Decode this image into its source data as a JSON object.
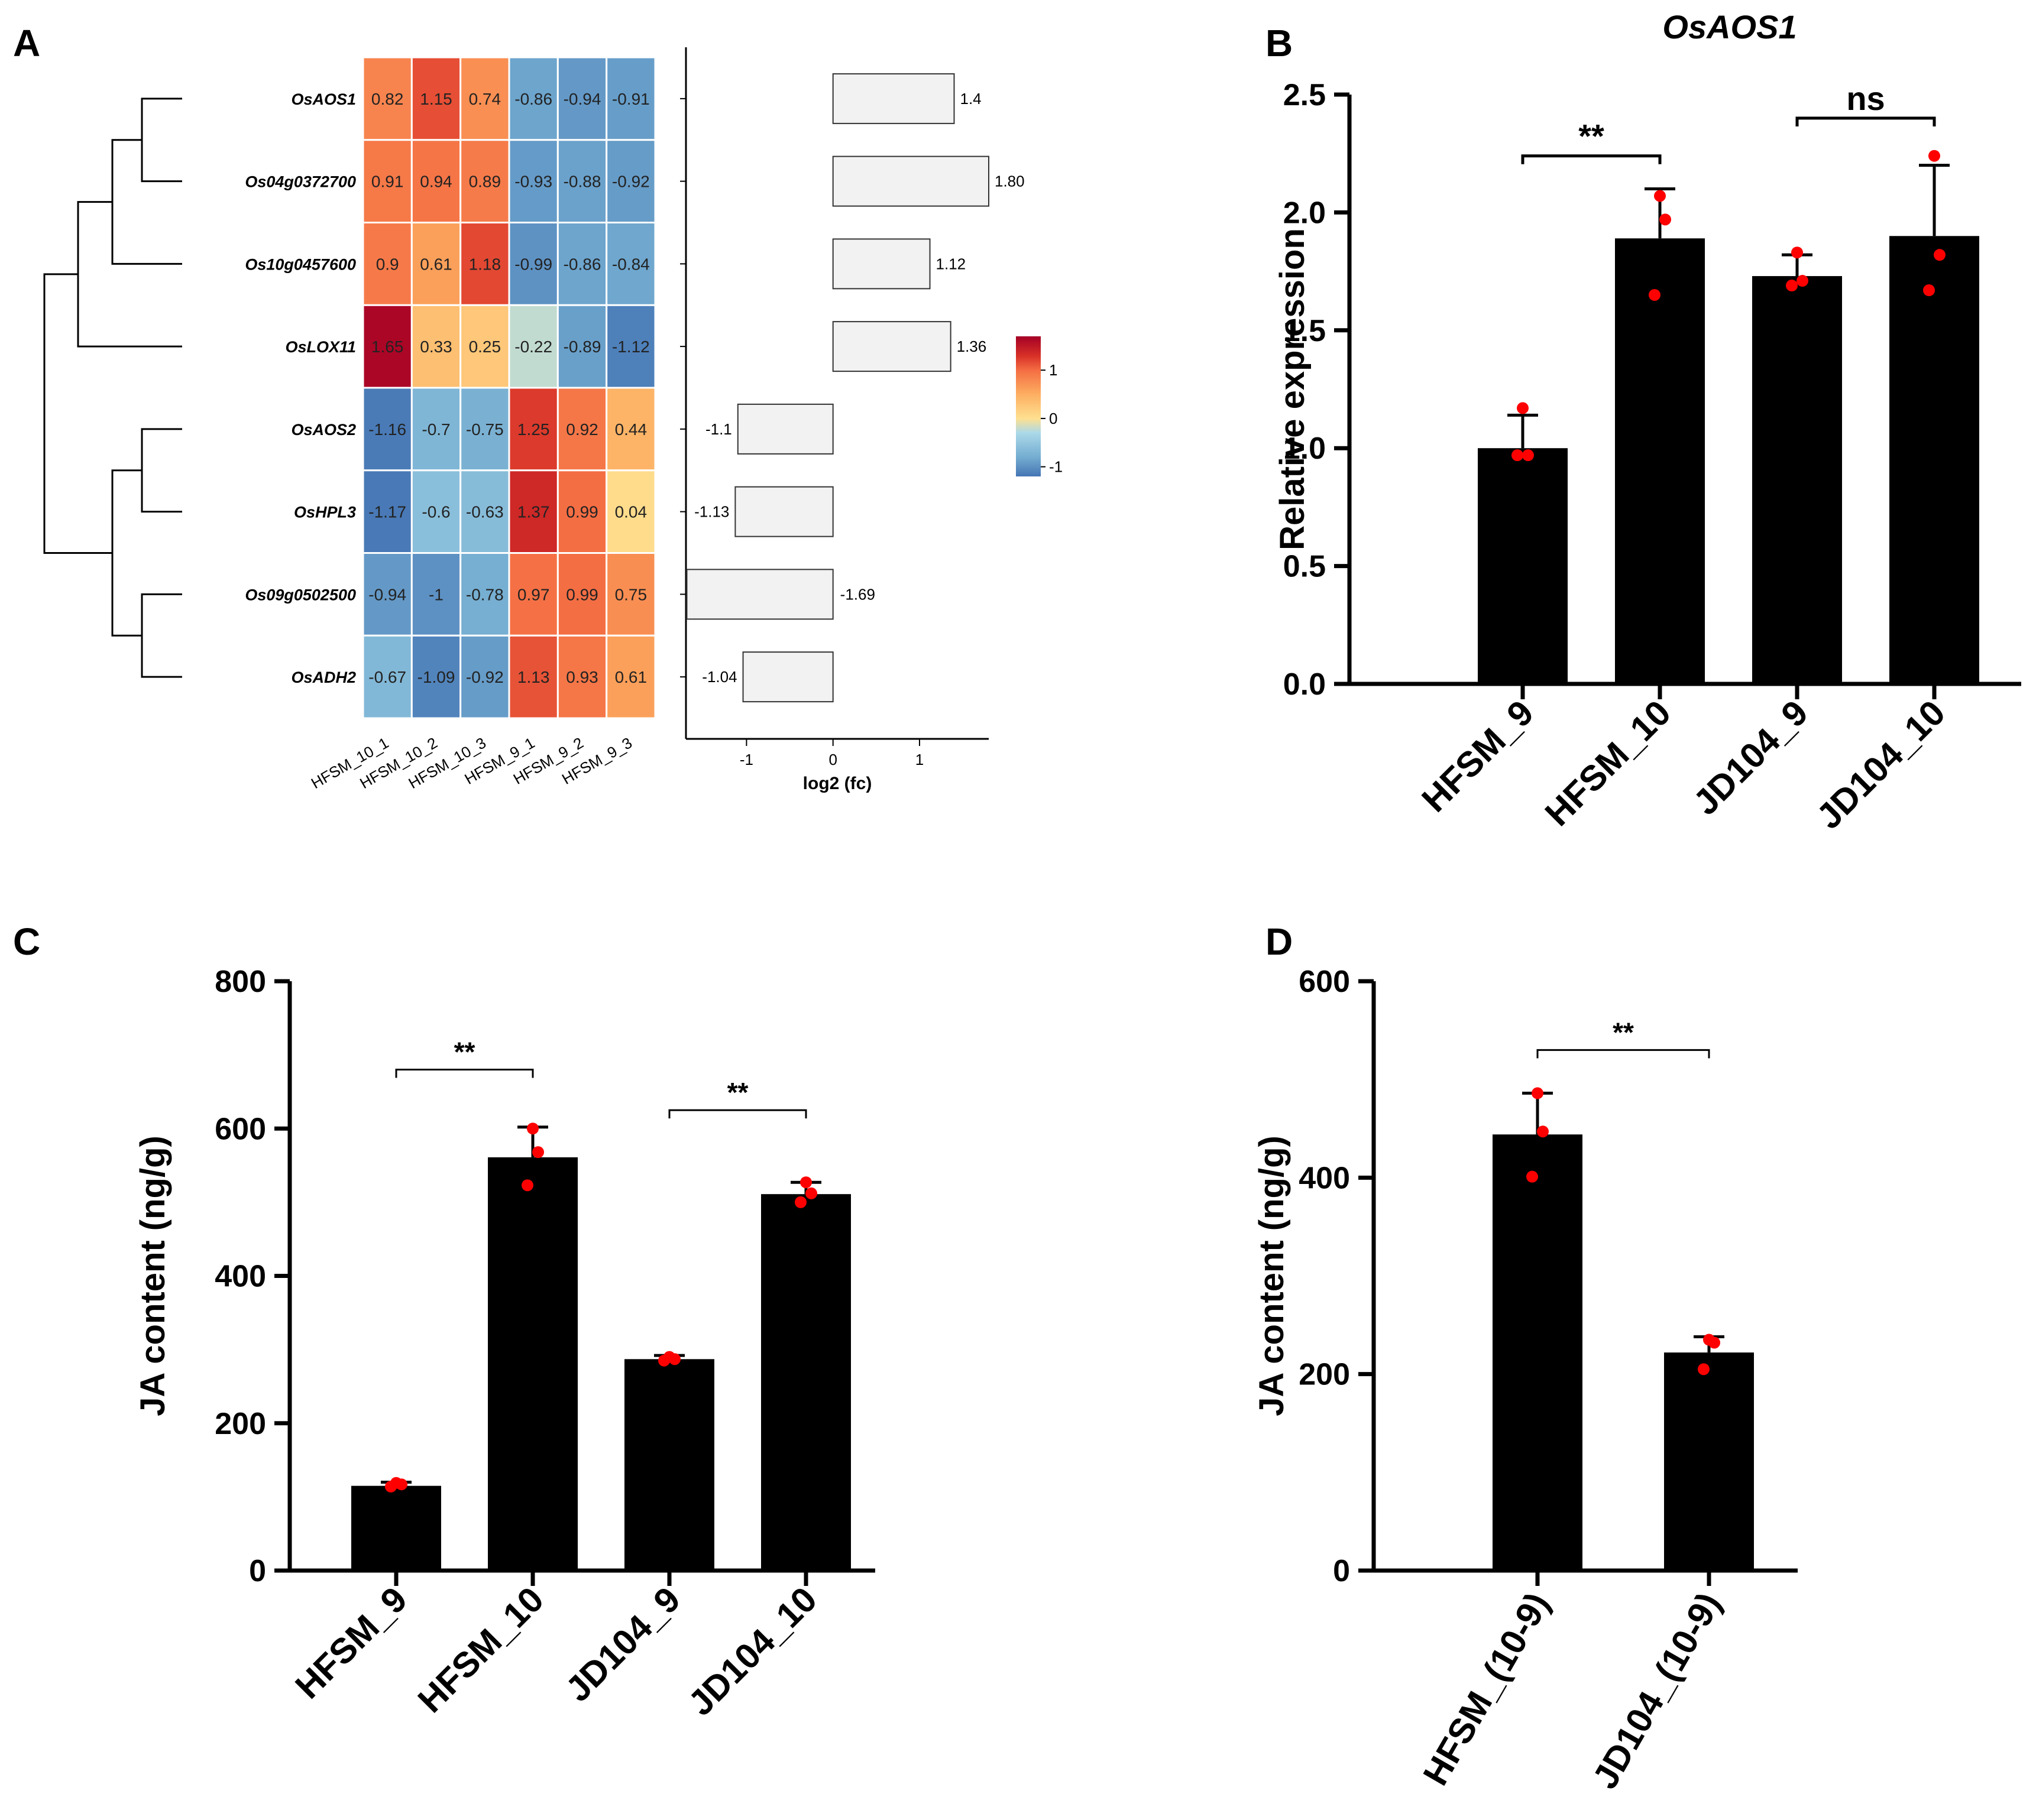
{
  "colors": {
    "bar": "#000000",
    "point": "#ff0000",
    "heat_low": "#4575b4",
    "heat_mid": "#fee090",
    "heat_high": "#a50026",
    "fc_bar": "#f2f2f2"
  },
  "panels": {
    "A": {
      "letter": "A"
    },
    "B": {
      "letter": "B"
    },
    "C": {
      "letter": "C"
    },
    "D": {
      "letter": "D"
    }
  },
  "chart_data": [
    {
      "id": "A_heatmap",
      "type": "heatmap",
      "title": "",
      "rows": [
        "OsAOS1",
        "Os04g0372700",
        "Os10g0457600",
        "OsLOX11",
        "OsAOS2",
        "OsHPL3",
        "Os09g0502500",
        "OsADH2"
      ],
      "columns": [
        "HFSM_10_1",
        "HFSM_10_2",
        "HFSM_10_3",
        "HFSM_9_1",
        "HFSM_9_2",
        "HFSM_9_3"
      ],
      "values": [
        [
          0.82,
          1.15,
          0.74,
          -0.86,
          -0.94,
          -0.91
        ],
        [
          0.91,
          0.94,
          0.89,
          -0.93,
          -0.88,
          -0.92
        ],
        [
          0.9,
          0.61,
          1.18,
          -0.99,
          -0.86,
          -0.84
        ],
        [
          1.65,
          0.33,
          0.25,
          -0.22,
          -0.89,
          -1.12
        ],
        [
          -1.16,
          -0.7,
          -0.75,
          1.25,
          0.92,
          0.44
        ],
        [
          -1.17,
          -0.6,
          -0.63,
          1.37,
          0.99,
          0.04
        ],
        [
          -0.94,
          -1,
          -0.78,
          0.97,
          0.99,
          0.75
        ],
        [
          -0.67,
          -1.09,
          -0.92,
          1.13,
          0.93,
          0.61
        ]
      ],
      "value_labels": [
        [
          "0.82",
          "1.15",
          "0.74",
          "-0.86",
          "-0.94",
          "-0.91"
        ],
        [
          "0.91",
          "0.94",
          "0.89",
          "-0.93",
          "-0.88",
          "-0.92"
        ],
        [
          "0.9",
          "0.61",
          "1.18",
          "-0.99",
          "-0.86",
          "-0.84"
        ],
        [
          "1.65",
          "0.33",
          "0.25",
          "-0.22",
          "-0.89",
          "-1.12"
        ],
        [
          "-1.16",
          "-0.7",
          "-0.75",
          "1.25",
          "0.92",
          "0.44"
        ],
        [
          "-1.17",
          "-0.6",
          "-0.63",
          "1.37",
          "0.99",
          "0.04"
        ],
        [
          "-0.94",
          "-1",
          "-0.78",
          "0.97",
          "0.99",
          "0.75"
        ],
        [
          "-0.67",
          "-1.09",
          "-0.92",
          "1.13",
          "0.93",
          "0.61"
        ]
      ],
      "color_scale": {
        "min": -1.2,
        "max": 1.7,
        "ticks": [
          -1,
          0,
          1
        ],
        "tick_labels": [
          "-1",
          "0",
          "1"
        ]
      },
      "dendrogram": "rows clustered into two groups: (OsAOS1, Os04g0372700, Os10g0457600, OsLOX11) and (OsAOS2, OsHPL3, Os09g0502500, OsADH2)"
    },
    {
      "id": "A_log2fc",
      "type": "bar",
      "orientation": "horizontal",
      "categories": [
        "OsAOS1",
        "Os04g0372700",
        "Os10g0457600",
        "OsLOX11",
        "OsAOS2",
        "OsHPL3",
        "Os09g0502500",
        "OsADH2"
      ],
      "values": [
        1.4,
        1.8,
        1.12,
        1.36,
        -1.1,
        -1.13,
        -1.69,
        -1.04
      ],
      "value_labels": [
        "1.4",
        "1.80",
        "1.12",
        "1.36",
        "-1.1",
        "-1.13",
        "-1.69",
        "-1.04"
      ],
      "xlabel": "log2 (fc)",
      "xlim": [
        -1.7,
        1.8
      ],
      "xticks": [
        -1,
        0,
        1
      ],
      "xtick_labels": [
        "-1",
        "0",
        "1"
      ]
    },
    {
      "id": "B",
      "type": "bar",
      "title": "OsAOS1",
      "categories": [
        "HFSM_9",
        "HFSM_10",
        "JD104_9",
        "JD104_10"
      ],
      "values": [
        1.0,
        1.89,
        1.73,
        1.9
      ],
      "errors": [
        0.14,
        0.21,
        0.09,
        0.3
      ],
      "points": [
        [
          0.97,
          0.97,
          1.17
        ],
        [
          1.65,
          1.97,
          2.07
        ],
        [
          1.69,
          1.71,
          1.83
        ],
        [
          1.67,
          1.82,
          2.24
        ]
      ],
      "ylabel": "Relative expression",
      "ylim": [
        0,
        2.5
      ],
      "yticks": [
        0,
        0.5,
        1,
        1.5,
        2,
        2.5
      ],
      "ytick_labels": [
        "0.0",
        "0.5",
        "1.0",
        "1.5",
        "2.0",
        "2.5"
      ],
      "significance": [
        {
          "from": 0,
          "to": 1,
          "label": "**",
          "y": 2.24
        },
        {
          "from": 2,
          "to": 3,
          "label": "ns",
          "y": 2.4
        }
      ]
    },
    {
      "id": "C",
      "type": "bar",
      "categories": [
        "HFSM_9",
        "HFSM_10",
        "JD104_9",
        "JD104_10"
      ],
      "values": [
        115,
        561,
        287,
        511
      ],
      "errors": [
        5,
        41,
        5,
        16
      ],
      "points": [
        [
          114,
          117,
          119
        ],
        [
          523,
          568,
          600
        ],
        [
          285,
          287,
          290
        ],
        [
          500,
          512,
          527
        ]
      ],
      "ylabel": "JA content (ng/g)",
      "ylim": [
        0,
        800
      ],
      "yticks": [
        0,
        200,
        400,
        600,
        800
      ],
      "ytick_labels": [
        "0",
        "200",
        "400",
        "600",
        "800"
      ],
      "significance": [
        {
          "from": 0,
          "to": 1,
          "label": "**",
          "y": 680
        },
        {
          "from": 2,
          "to": 3,
          "label": "**",
          "y": 625
        }
      ]
    },
    {
      "id": "D",
      "type": "bar",
      "categories": [
        "HFSM_(10-9)",
        "JD104_(10-9)"
      ],
      "values": [
        444,
        222
      ],
      "errors": [
        42,
        16
      ],
      "points": [
        [
          401,
          447,
          486
        ],
        [
          205,
          232,
          235
        ]
      ],
      "ylabel": "JA content (ng/g)",
      "ylim": [
        0,
        600
      ],
      "yticks": [
        0,
        200,
        400,
        600
      ],
      "ytick_labels": [
        "0",
        "200",
        "400",
        "600"
      ],
      "significance": [
        {
          "from": 0,
          "to": 1,
          "label": "**",
          "y": 530
        }
      ]
    }
  ]
}
